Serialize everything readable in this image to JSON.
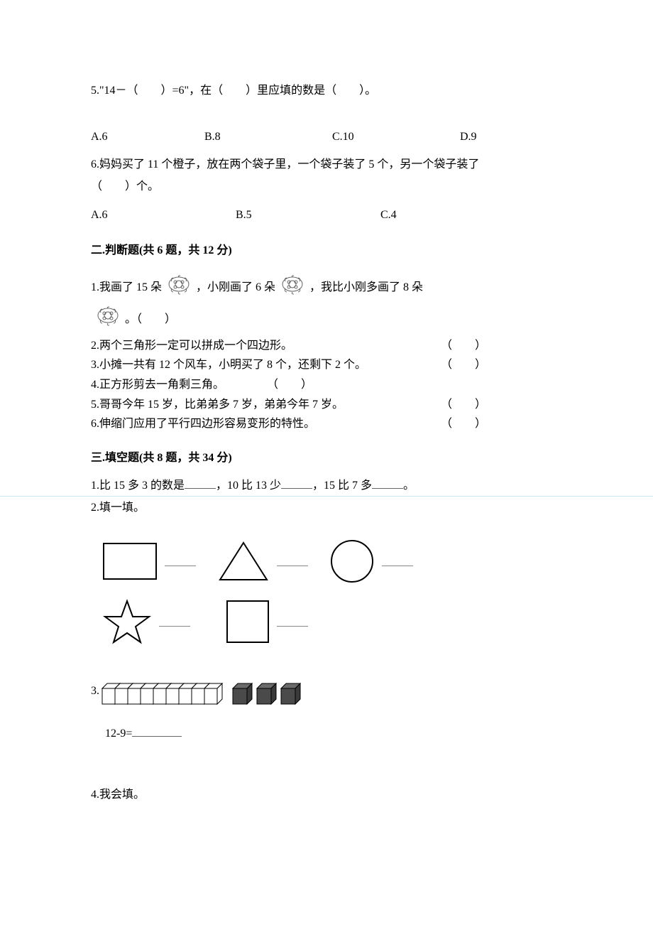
{
  "q5": {
    "text": "5.\"14－（　　）=6\"，在（　　）里应填的数是（　　）。",
    "options": {
      "a": "A.6",
      "b": "B.8",
      "c": "C.10",
      "d": "D.9"
    }
  },
  "q6": {
    "line1": "6.妈妈买了 11 个橙子，放在两个袋子里，一个袋子装了 5 个，另一个袋子装了",
    "line2": "（　　）个。",
    "options": {
      "a": "A.6",
      "b": "B.5",
      "c": "C.4"
    }
  },
  "section2": {
    "title": "二.判断题(共 6 题，共 12 分)",
    "q1_a": "1.我画了 15 朵",
    "q1_b": "，小刚画了 6 朵",
    "q1_c": "，我比小刚多画了 8 朵",
    "q1_d": "。（　　）",
    "q2": "2.两个三角形一定可以拼成一个四边形。",
    "q3": "3.小摊一共有 12 个风车，小明买了 8 个，还剩下 2 个。",
    "q4": "4.正方形剪去一角剩三角。",
    "q5": "5.哥哥今年 15 岁，比弟弟多 7 岁，弟弟今年 7 岁。",
    "q6": "6.伸缩门应用了平行四边形容易变形的特性。",
    "paren": "（　　）",
    "paren_q4": "（　　）"
  },
  "section3": {
    "title": "三.填空题(共 8 题，共 34 分)",
    "q1_a": "1.比 15 多 3 的数是",
    "q1_b": "，10 比 13 少",
    "q1_c": "，15 比 7 多",
    "q1_d": "。",
    "q2": "2.填一填。",
    "q3_num": "3.",
    "q3_expr_a": "12-9=",
    "q4": "4.我会填。"
  },
  "colors": {
    "text": "#000000",
    "bg": "#ffffff",
    "hr": "#c9e6f5",
    "cube_light": "#ffffff",
    "cube_dark": "#4a4a4a",
    "line": "#000000"
  }
}
